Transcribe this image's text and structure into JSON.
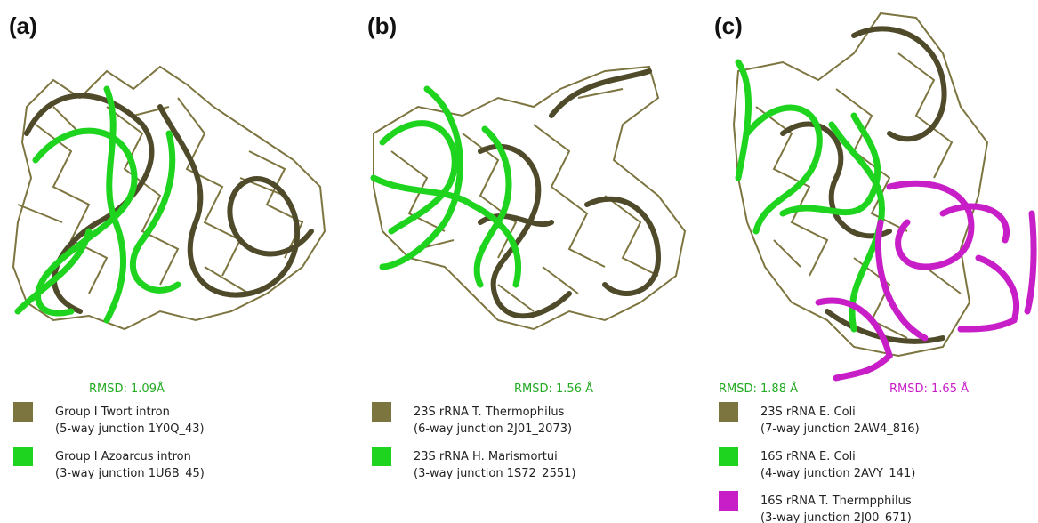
{
  "panels": [
    {
      "label": "(a)",
      "rmsd": [
        {
          "text": "RMSD: 1.09Å",
          "color": "#22aa22"
        }
      ],
      "legend": [
        {
          "color": "#7d7540",
          "name": "Group I Twort intron",
          "detail": "(5-way junction 1Y0Q_43)"
        },
        {
          "color": "#1fd41f",
          "name": "Group I Azoarcus intron",
          "detail": "(3-way junction 1U6B_45)"
        }
      ]
    },
    {
      "label": "(b)",
      "rmsd": [
        {
          "text": "RMSD: 1.56 Å",
          "color": "#22aa22"
        }
      ],
      "legend": [
        {
          "color": "#7d7540",
          "name": "23S rRNA T. Thermophilus",
          "detail": "(6-way junction 2J01_2073)"
        },
        {
          "color": "#1fd41f",
          "name": "23S rRNA H. Marismortui",
          "detail": "(3-way junction 1S72_2551)"
        }
      ]
    },
    {
      "label": "(c)",
      "rmsd": [
        {
          "text": "RMSD: 1.88 Å",
          "color": "#22aa22"
        },
        {
          "text": "RMSD: 1.65 Å",
          "color": "#c81ec8"
        }
      ],
      "legend": [
        {
          "color": "#7d7540",
          "name": "23S rRNA E. Coli",
          "detail": "(7-way junction 2AW4_816)"
        },
        {
          "color": "#1fd41f",
          "name": "16S rRNA E. Coli",
          "detail": "(4-way junction 2AVY_141)"
        },
        {
          "color": "#c81ec8",
          "name": "16S rRNA T. Thermpphilus",
          "detail": "(3-way junction 2J00_671)"
        }
      ]
    }
  ]
}
